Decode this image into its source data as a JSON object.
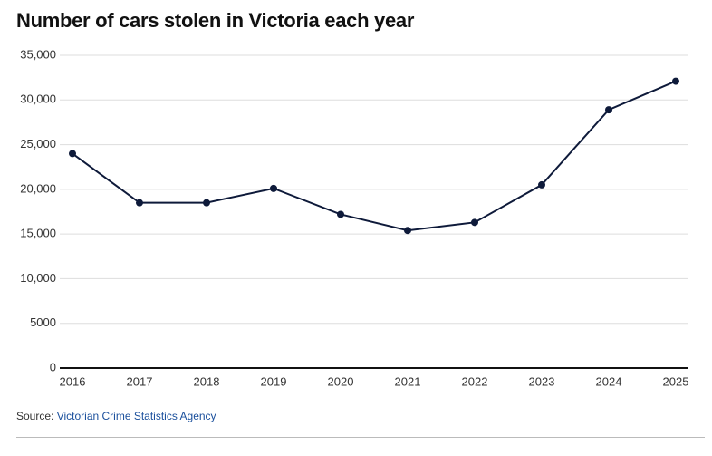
{
  "chart_data": {
    "type": "line",
    "title": "Number of cars stolen in Victoria each year",
    "categories": [
      "2016",
      "2017",
      "2018",
      "2019",
      "2020",
      "2021",
      "2022",
      "2023",
      "2024",
      "2025"
    ],
    "values": [
      24000,
      18500,
      18500,
      20100,
      17200,
      15400,
      16300,
      20500,
      28900,
      32100
    ],
    "color": "#0e1a3a",
    "ylim": [
      0,
      35000
    ],
    "yticks": [
      0,
      5000,
      {
        "value": 10000,
        "label": "10,000"
      },
      {
        "value": 15000,
        "label": "15,000"
      },
      {
        "value": 20000,
        "label": "20,000"
      },
      {
        "value": 25000,
        "label": "25,000"
      },
      {
        "value": 30000,
        "label": "30,000"
      },
      {
        "value": 35000,
        "label": "35,000"
      }
    ],
    "grid": true,
    "source_label": "Source:",
    "source": "Victorian Crime Statistics Agency"
  }
}
